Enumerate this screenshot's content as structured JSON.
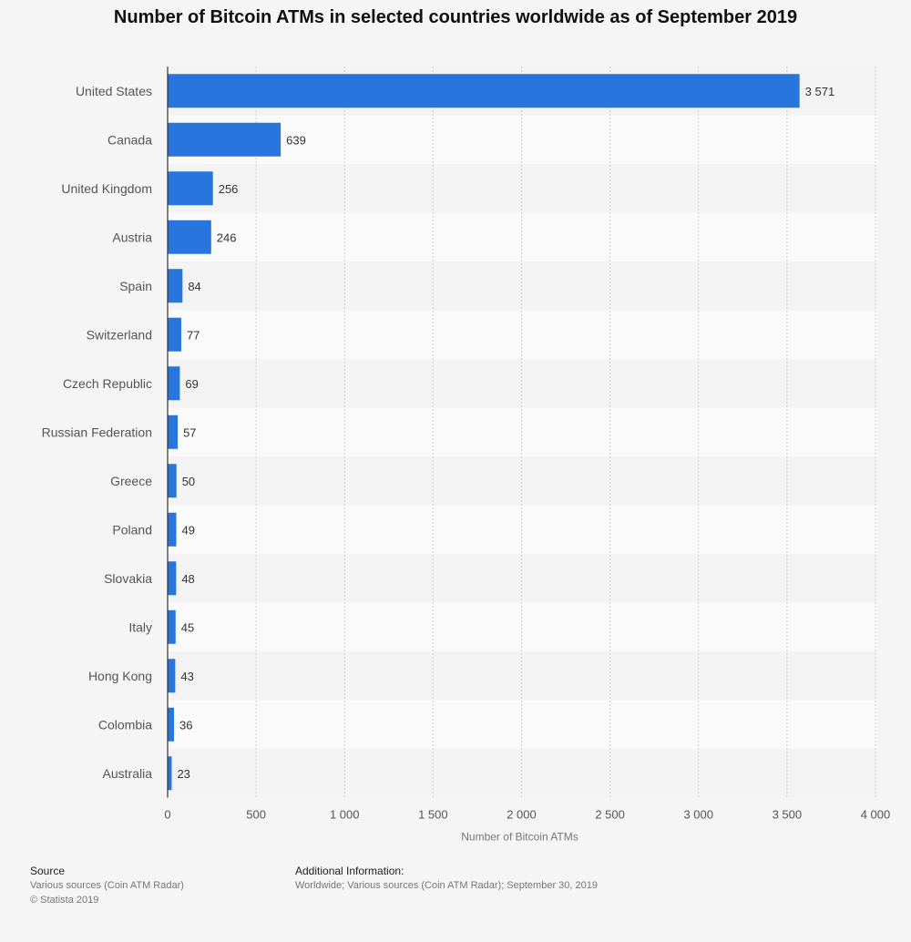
{
  "chart_data": {
    "type": "bar",
    "orientation": "horizontal",
    "title": "Number of Bitcoin ATMs in selected countries worldwide as of September 2019",
    "xlabel": "Number of Bitcoin ATMs",
    "ylabel": "",
    "xlim": [
      0,
      4000
    ],
    "ticks": [
      0,
      500,
      1000,
      1500,
      2000,
      2500,
      3000,
      3500,
      4000
    ],
    "tick_labels": [
      "0",
      "500",
      "1 000",
      "1 500",
      "2 000",
      "2 500",
      "3 000",
      "3 500",
      "4 000"
    ],
    "categories": [
      "United States",
      "Canada",
      "United Kingdom",
      "Austria",
      "Spain",
      "Switzerland",
      "Czech Republic",
      "Russian Federation",
      "Greece",
      "Poland",
      "Slovakia",
      "Italy",
      "Hong Kong",
      "Colombia",
      "Australia"
    ],
    "values": [
      3571,
      639,
      256,
      246,
      84,
      77,
      69,
      57,
      50,
      49,
      48,
      45,
      43,
      36,
      23
    ],
    "value_labels": [
      "3 571",
      "639",
      "256",
      "246",
      "84",
      "77",
      "69",
      "57",
      "50",
      "49",
      "48",
      "45",
      "43",
      "36",
      "23"
    ],
    "grid": true,
    "bar_color": "#2876dd"
  },
  "footer": {
    "source_heading": "Source",
    "source_line1": "Various sources (Coin ATM Radar)",
    "source_line2": "© Statista 2019",
    "info_heading": "Additional Information:",
    "info_line1": "Worldwide; Various sources (Coin ATM Radar); September 30, 2019"
  }
}
